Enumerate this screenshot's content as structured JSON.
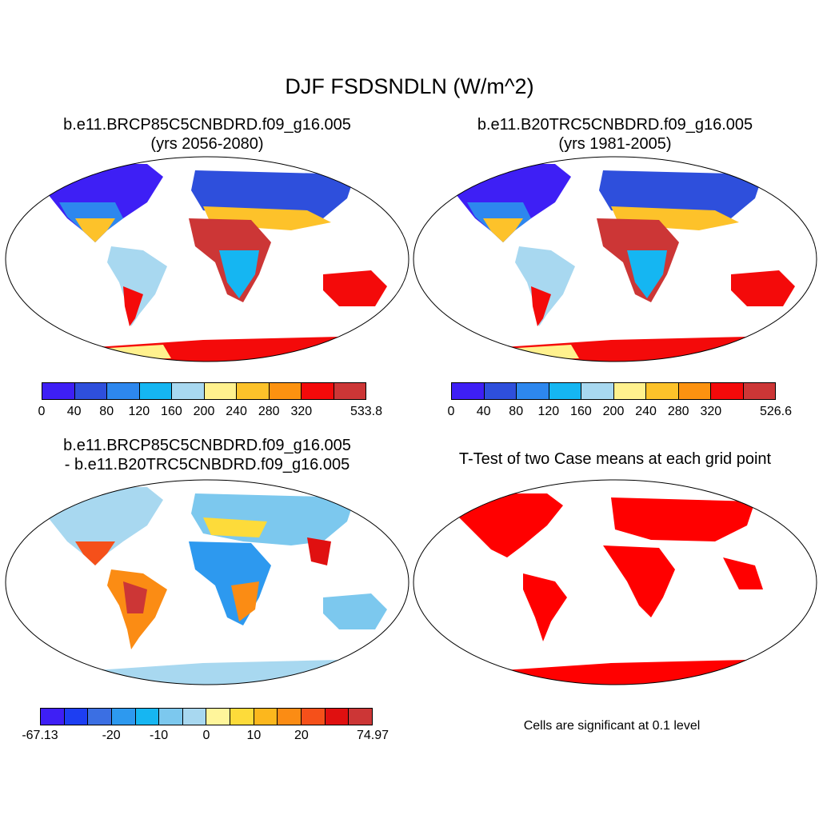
{
  "title": "DJF FSDSNDLN (W/m^2)",
  "panels": {
    "top_left": {
      "title_line1": "b.e11.BRCP85C5CNBDRD.f09_g16.005",
      "title_line2": "(yrs 2056-2080)"
    },
    "top_right": {
      "title_line1": "b.e11.B20TRC5CNBDRD.f09_g16.005",
      "title_line2": "(yrs 1981-2005)"
    },
    "bottom_left": {
      "title_line1": "b.e11.BRCP85C5CNBDRD.f09_g16.005",
      "title_line2": "- b.e11.B20TRC5CNBDRD.f09_g16.005"
    },
    "bottom_right": {
      "title_line1": "T-Test of two Case means at each grid point",
      "note": "Cells are significant at 0.1 level"
    }
  },
  "colorbars": {
    "top_left": {
      "colors": [
        "#3e1ff5",
        "#2e4fdc",
        "#2d87ee",
        "#15b6f2",
        "#a8d8f0",
        "#fff18e",
        "#fdc22a",
        "#fc9210",
        "#f40a0a",
        "#cc3636"
      ],
      "labels": [
        "0",
        "40",
        "80",
        "120",
        "160",
        "200",
        "240",
        "280",
        "320",
        "533.8"
      ]
    },
    "top_right": {
      "colors": [
        "#3e1ff5",
        "#2e4fdc",
        "#2d87ee",
        "#15b6f2",
        "#a8d8f0",
        "#fff18e",
        "#fdc22a",
        "#fc9210",
        "#f40a0a",
        "#cc3636"
      ],
      "labels": [
        "0",
        "40",
        "80",
        "120",
        "160",
        "200",
        "240",
        "280",
        "320",
        "526.6"
      ]
    },
    "bottom_left": {
      "colors": [
        "#3e1ff5",
        "#1d3ef2",
        "#3b6fe3",
        "#2d99ef",
        "#16b6f2",
        "#7cc8ee",
        "#a8d8f0",
        "#fff59b",
        "#fddb3a",
        "#fcb71d",
        "#fb8c14",
        "#f5501a",
        "#e01010",
        "#cc3636"
      ],
      "labels": [
        "-67.13",
        "-20",
        "-10",
        "0",
        "10",
        "20",
        "74.97"
      ]
    }
  }
}
